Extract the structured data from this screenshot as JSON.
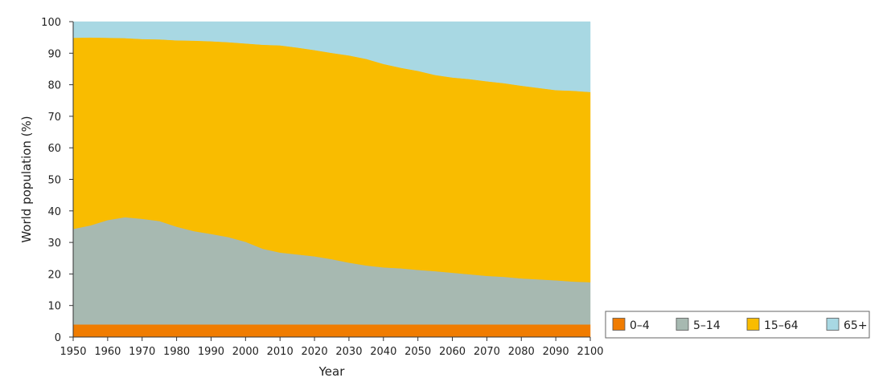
{
  "chart_data": {
    "type": "area",
    "stacked": true,
    "xlabel": "Year",
    "ylabel": "World population (%)",
    "xlim": [
      1950,
      2100
    ],
    "ylim": [
      0,
      100
    ],
    "xticks": [
      1950,
      1960,
      1970,
      1980,
      1990,
      2000,
      2010,
      2020,
      2030,
      2040,
      2050,
      2060,
      2070,
      2080,
      2090,
      2100
    ],
    "yticks": [
      0,
      10,
      20,
      30,
      40,
      50,
      60,
      70,
      80,
      90,
      100
    ],
    "grid": false,
    "legend_position": "bottom-right",
    "x": [
      1950,
      1955,
      1960,
      1965,
      1970,
      1975,
      1980,
      1985,
      1990,
      1995,
      2000,
      2005,
      2010,
      2015,
      2020,
      2025,
      2030,
      2035,
      2040,
      2045,
      2050,
      2055,
      2060,
      2065,
      2070,
      2075,
      2080,
      2085,
      2090,
      2095,
      2100
    ],
    "series": [
      {
        "name": "0–4",
        "color": "#f07c00",
        "values": [
          4,
          4,
          4,
          4,
          4,
          4,
          4,
          4,
          4,
          4,
          4,
          4,
          4,
          4,
          4,
          4,
          4,
          4,
          4,
          4,
          4,
          4,
          4,
          4,
          4,
          4,
          4,
          4,
          4,
          4,
          4
        ]
      },
      {
        "name": "5–14",
        "color": "#a7b9b1",
        "values": [
          30.3,
          31.4,
          33.1,
          34.0,
          33.5,
          32.8,
          31.0,
          29.6,
          28.7,
          27.7,
          26.2,
          24.0,
          22.8,
          22.2,
          21.6,
          20.7,
          19.6,
          18.7,
          18.1,
          17.8,
          17.3,
          16.9,
          16.4,
          15.9,
          15.4,
          15.1,
          14.6,
          14.3,
          14.0,
          13.6,
          13.4
        ]
      },
      {
        "name": "15–64",
        "color": "#f9bc00",
        "values": [
          60.6,
          59.6,
          57.8,
          56.8,
          57.0,
          57.6,
          59.1,
          60.4,
          61.1,
          61.8,
          62.9,
          64.7,
          65.7,
          65.6,
          65.4,
          65.4,
          65.7,
          65.5,
          64.5,
          63.6,
          63.1,
          62.2,
          61.9,
          61.9,
          61.7,
          61.4,
          61.1,
          60.7,
          60.3,
          60.5,
          60.3
        ]
      },
      {
        "name": "65+",
        "color": "#a8d8e3",
        "values": [
          5.1,
          5.0,
          5.1,
          5.2,
          5.5,
          5.6,
          5.9,
          6.0,
          6.2,
          6.5,
          6.9,
          7.3,
          7.5,
          8.2,
          9.0,
          9.9,
          10.7,
          11.8,
          13.4,
          14.6,
          15.6,
          16.9,
          17.7,
          18.2,
          18.9,
          19.5,
          20.3,
          21.0,
          21.7,
          21.9,
          22.3
        ]
      }
    ]
  }
}
